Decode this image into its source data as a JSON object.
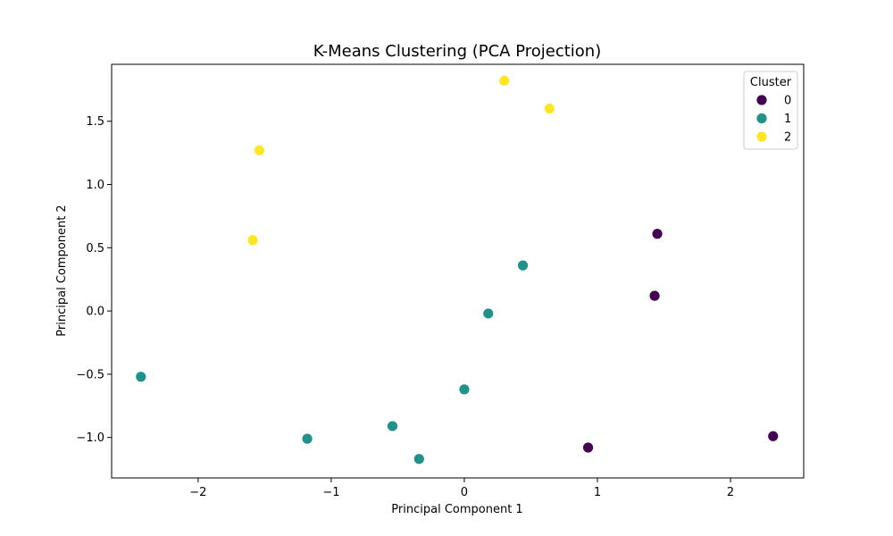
{
  "chart_data": {
    "type": "scatter",
    "title": "K-Means Clustering (PCA Projection)",
    "xlabel": "Principal Component 1",
    "ylabel": "Principal Component 2",
    "xlim": [
      -2.65,
      2.55
    ],
    "ylim": [
      -1.32,
      1.95
    ],
    "xticks": [
      -2,
      -1,
      0,
      1,
      2
    ],
    "xtick_labels": [
      "−2",
      "−1",
      "0",
      "1",
      "2"
    ],
    "yticks": [
      -1.0,
      -0.5,
      0.0,
      0.5,
      1.0,
      1.5
    ],
    "ytick_labels": [
      "−1.0",
      "−0.5",
      "0.0",
      "0.5",
      "1.0",
      "1.5"
    ],
    "grid": false,
    "legend": {
      "title": "Cluster",
      "placement": "top-right"
    },
    "series": [
      {
        "name": "0",
        "color": "#440154",
        "points": [
          {
            "x": 1.45,
            "y": 0.61
          },
          {
            "x": 1.43,
            "y": 0.12
          },
          {
            "x": 0.93,
            "y": -1.08
          },
          {
            "x": 2.32,
            "y": -0.99
          }
        ]
      },
      {
        "name": "1",
        "color": "#21918c",
        "points": [
          {
            "x": -2.43,
            "y": -0.52
          },
          {
            "x": -1.18,
            "y": -1.01
          },
          {
            "x": -0.54,
            "y": -0.91
          },
          {
            "x": -0.34,
            "y": -1.17
          },
          {
            "x": 0.0,
            "y": -0.62
          },
          {
            "x": 0.18,
            "y": -0.02
          },
          {
            "x": 0.44,
            "y": 0.36
          }
        ]
      },
      {
        "name": "2",
        "color": "#fde725",
        "points": [
          {
            "x": -1.54,
            "y": 1.27
          },
          {
            "x": -1.59,
            "y": 0.56
          },
          {
            "x": 0.3,
            "y": 1.82
          },
          {
            "x": 0.64,
            "y": 1.6
          }
        ]
      }
    ]
  }
}
